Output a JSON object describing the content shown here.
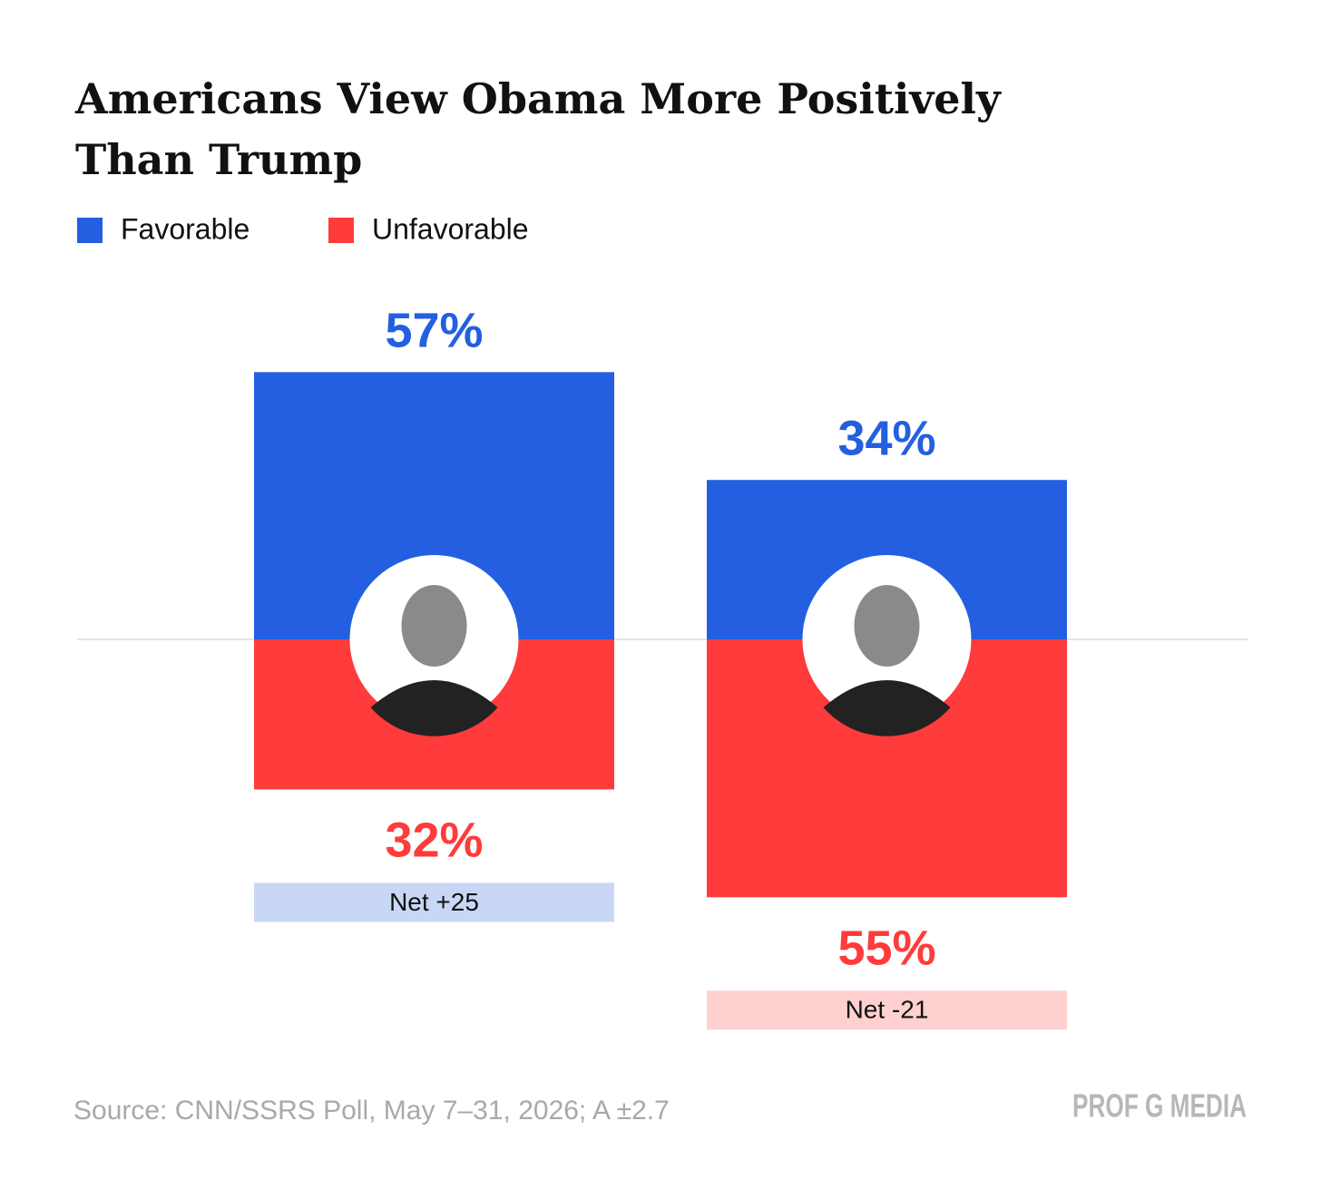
{
  "chart_data": {
    "type": "bar",
    "diverging": true,
    "title": [
      "Americans View Obama More Positively",
      "Than Trump"
    ],
    "series": [
      {
        "name": "Favorable",
        "color": "#235fe0",
        "values": [
          57,
          34
        ],
        "value_labels": [
          "57%",
          "34%"
        ]
      },
      {
        "name": "Unfavorable",
        "color": "#ff3b3b",
        "values": [
          32,
          55
        ],
        "value_labels": [
          "32%",
          "55%"
        ]
      }
    ],
    "annotations": [
      {
        "text": "Net +25",
        "color": "#c9d7f6"
      },
      {
        "text": "Net -21",
        "color": "#ffd0d0"
      }
    ],
    "source": "Source: CNN/SSRS Poll, May 7–31, 2026; A ±2.7",
    "brand": "PROF G MEDIA"
  }
}
